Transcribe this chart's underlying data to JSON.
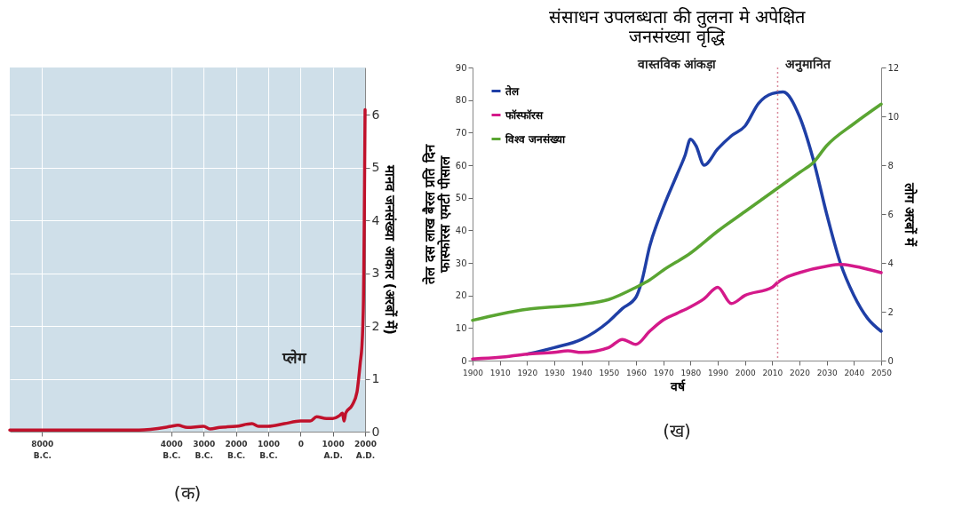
{
  "chart_data": [
    {
      "type": "line",
      "y2label": "मानव जनसंख्या आकार (अरबों में)",
      "xlim": [
        -9000,
        2000
      ],
      "xticks": [
        {
          "value": -8000,
          "label": "8000 B.C."
        },
        {
          "value": -4000,
          "label": "4000 B.C."
        },
        {
          "value": -3000,
          "label": "3000 B.C."
        },
        {
          "value": -2000,
          "label": "2000 B.C."
        },
        {
          "value": -1000,
          "label": "1000 B.C."
        },
        0,
        {
          "value": 1000,
          "label": "1000 A.D."
        },
        {
          "value": 2000,
          "label": "2000 A.D."
        }
      ],
      "y2lim": [
        0,
        6.9
      ],
      "y2ticks": [
        0,
        1,
        2,
        3,
        4,
        5,
        6
      ],
      "grid": true,
      "series": [
        {
          "color": "#c0112b",
          "axis": "y2",
          "x": [
            -9000,
            -5000,
            -4000,
            -3800,
            -3500,
            -3000,
            -2800,
            -2500,
            -2000,
            -1500,
            -1300,
            -1000,
            -500,
            0,
            300,
            500,
            800,
            1000,
            1200,
            1300,
            1350,
            1400,
            1600,
            1750,
            1800,
            1850,
            1900,
            1930,
            1950,
            1960,
            1975,
            1987,
            2000
          ],
          "values": [
            0.03,
            0.03,
            0.1,
            0.12,
            0.08,
            0.1,
            0.05,
            0.08,
            0.1,
            0.15,
            0.1,
            0.1,
            0.15,
            0.2,
            0.2,
            0.28,
            0.25,
            0.25,
            0.3,
            0.35,
            0.2,
            0.35,
            0.5,
            0.75,
            1.0,
            1.3,
            1.6,
            2.0,
            2.5,
            3.0,
            4.0,
            5.0,
            6.1
          ]
        }
      ],
      "annotations": [
        "प्लेग",
        "(क)"
      ]
    },
    {
      "type": "line",
      "title": "संसाधन उपलब्धता की तुलना मे अपेक्षित जनसंख्या वृद्धि",
      "xlabel": "वर्ष",
      "ylabel": "तेल दस लाख बैरल प्रति दिन फास्फोरस एमटी पीसाल",
      "y2label": "लोग अरबों में",
      "xlim": [
        1900,
        2050
      ],
      "xticks": [
        1900,
        1910,
        1920,
        1930,
        1940,
        1950,
        1960,
        1970,
        1980,
        1990,
        2000,
        2010,
        2020,
        2030,
        2040,
        2050
      ],
      "ylim": [
        0,
        90
      ],
      "yticks": [
        0,
        10,
        20,
        30,
        40,
        50,
        60,
        70,
        80,
        90
      ],
      "y2lim": [
        0,
        12
      ],
      "y2ticks": [
        0,
        2,
        4,
        6,
        8,
        10,
        12
      ],
      "legend": "top left",
      "series": [
        {
          "name": "तेल",
          "color": "#1f3fa6",
          "x": [
            1920,
            1930,
            1940,
            1950,
            1955,
            1960,
            1962,
            1965,
            1970,
            1975,
            1978,
            1980,
            1982,
            1985,
            1990,
            1995,
            2000,
            2005,
            2010,
            2014,
            2020,
            2025,
            2030,
            2035,
            2040,
            2045,
            2050
          ],
          "values": [
            2,
            4,
            6.5,
            12,
            16,
            19.5,
            24,
            35,
            47,
            57,
            63,
            68,
            66,
            60,
            65,
            69,
            72,
            79,
            82,
            82.5,
            75,
            62,
            45,
            30,
            20,
            13,
            9
          ]
        },
        {
          "name": "फॉस्फॉरस",
          "color": "#d4198a",
          "x": [
            1900,
            1910,
            1920,
            1930,
            1935,
            1940,
            1950,
            1955,
            1960,
            1965,
            1970,
            1975,
            1980,
            1985,
            1990,
            1995,
            2000,
            2010,
            2012,
            2015,
            2020,
            2030,
            2035,
            2040,
            2050
          ],
          "values": [
            0.5,
            1,
            2,
            2.5,
            3,
            2.5,
            4,
            6.5,
            5,
            9,
            12.5,
            14.5,
            16.5,
            19,
            22.5,
            17.5,
            20,
            22.5,
            24,
            25.5,
            27,
            29,
            29.5,
            29,
            27
          ]
        },
        {
          "name": "विश्व जनसंख्या",
          "color": "#5aa532",
          "axis": "y2",
          "x": [
            1900,
            1910,
            1920,
            1930,
            1940,
            1950,
            1960,
            1965,
            1970,
            1980,
            1990,
            2000,
            2010,
            2020,
            2025,
            2030,
            2040,
            2050
          ],
          "values": [
            1.65,
            1.9,
            2.1,
            2.2,
            2.3,
            2.5,
            3.0,
            3.3,
            3.7,
            4.4,
            5.3,
            6.1,
            6.9,
            7.7,
            8.1,
            8.8,
            9.7,
            10.5
          ]
        }
      ],
      "ref_lines": [
        {
          "axis": "x",
          "value": 2012,
          "color": "#d98a9a",
          "line_style": "dotted"
        }
      ],
      "annotations": [
        "वास्तविक आंकड़ा",
        "अनुमानित",
        "(ख)"
      ]
    }
  ]
}
